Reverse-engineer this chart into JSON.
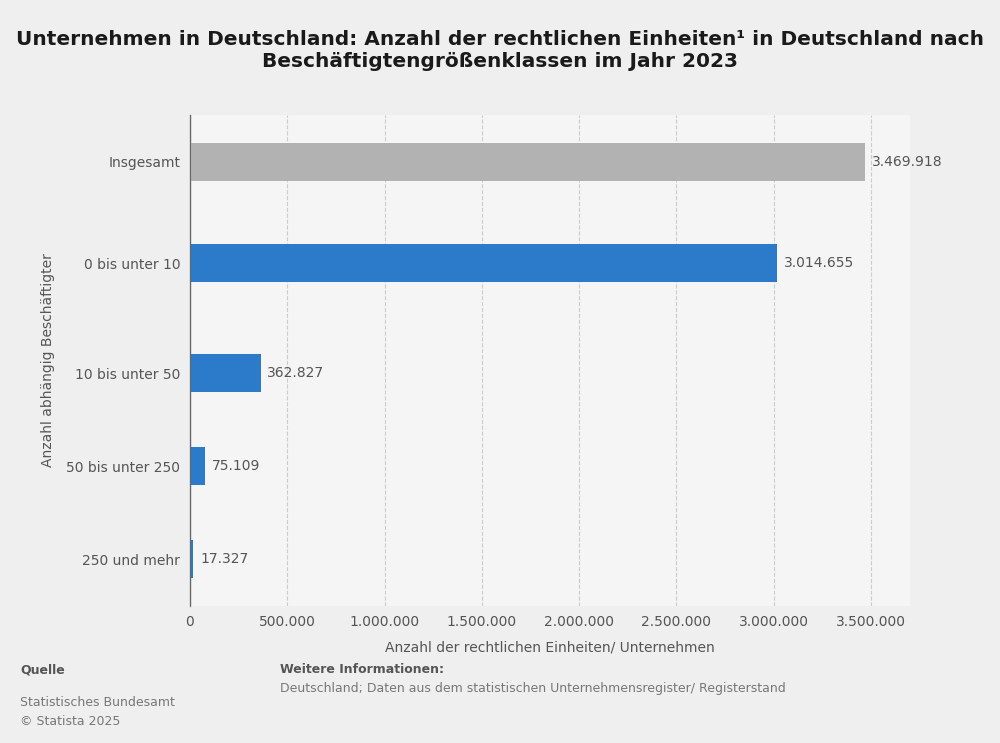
{
  "title": "Unternehmen in Deutschland: Anzahl der rechtlichen Einheiten¹ in Deutschland nach\nBeschäftigtengrößenklassen im Jahr 2023",
  "categories": [
    "250 und mehr",
    "50 bis unter 250",
    "10 bis unter 50",
    "0 bis unter 10",
    "Insgesamt"
  ],
  "values": [
    17327,
    75109,
    362827,
    3014655,
    3469918
  ],
  "bar_colors": [
    "#2b7bca",
    "#2b7bca",
    "#2b7bca",
    "#2b7bca",
    "#b2b2b2"
  ],
  "value_labels": [
    "17.327",
    "75.109",
    "362.827",
    "3.014.655",
    "3.469.918"
  ],
  "xlabel": "Anzahl der rechtlichen Einheiten/ Unternehmen",
  "ylabel": "Anzahl abhängig Beschäftigter",
  "xlim": [
    0,
    3700000
  ],
  "xticks": [
    0,
    500000,
    1000000,
    1500000,
    2000000,
    2500000,
    3000000,
    3500000
  ],
  "xtick_labels": [
    "0",
    "500.000",
    "1.000.000",
    "1.500.000",
    "2.000.000",
    "2.500.000",
    "3.000.000",
    "3.500.000"
  ],
  "background_color": "#efefef",
  "plot_background_color": "#f5f5f5",
  "source_label": "Quelle",
  "source_text": "Statistisches Bundesamt\n© Statista 2025",
  "info_label": "Weitere Informationen:",
  "info_text": "Deutschland; Daten aus dem statistischen Unternehmensregister/ Registerstand",
  "title_fontsize": 14.5,
  "ylabel_fontsize": 10,
  "xlabel_fontsize": 10,
  "tick_fontsize": 10,
  "value_label_fontsize": 10,
  "bar_height": 0.45,
  "footer_fontsize": 9
}
